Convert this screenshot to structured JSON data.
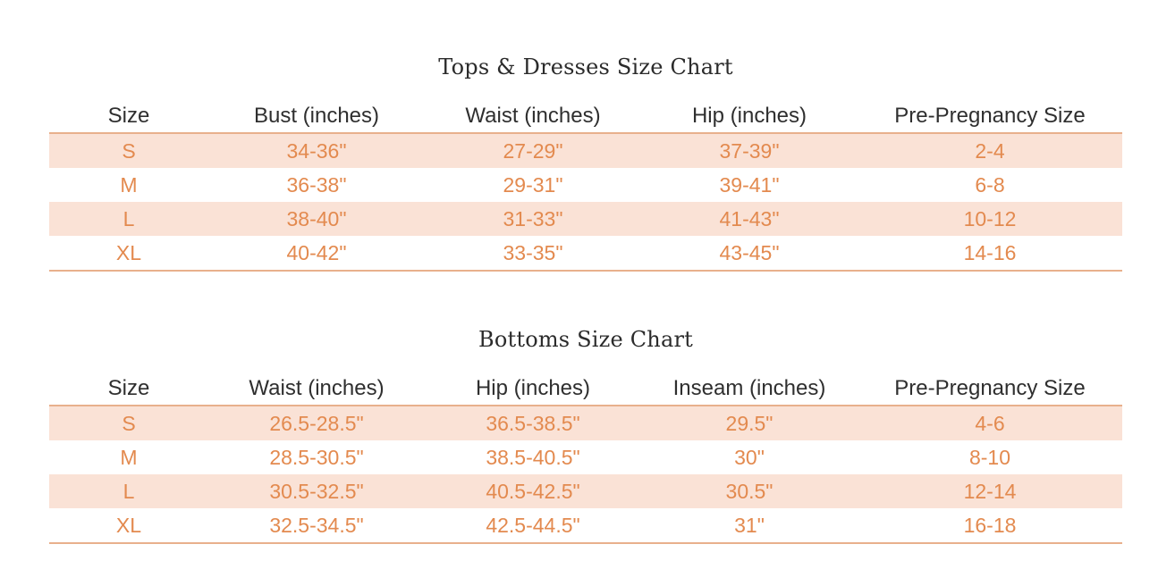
{
  "tops": {
    "title": "Tops & Dresses Size Chart",
    "headers": [
      "Size",
      "Bust (inches)",
      "Waist (inches)",
      "Hip (inches)",
      "Pre-Pregnancy Size"
    ],
    "rows": [
      [
        "S",
        "34-36\"",
        "27-29\"",
        "37-39\"",
        "2-4"
      ],
      [
        "M",
        "36-38\"",
        "29-31\"",
        "39-41\"",
        "6-8"
      ],
      [
        "L",
        "38-40\"",
        "31-33\"",
        "41-43\"",
        "10-12"
      ],
      [
        "XL",
        "40-42\"",
        "33-35\"",
        "43-45\"",
        "14-16"
      ]
    ]
  },
  "bottoms": {
    "title": "Bottoms Size Chart",
    "headers": [
      "Size",
      "Waist (inches)",
      "Hip (inches)",
      "Inseam (inches)",
      "Pre-Pregnancy Size"
    ],
    "rows": [
      [
        "S",
        "26.5-28.5\"",
        "36.5-38.5\"",
        "29.5\"",
        "4-6"
      ],
      [
        "M",
        "28.5-30.5\"",
        "38.5-40.5\"",
        "30\"",
        "8-10"
      ],
      [
        "L",
        "30.5-32.5\"",
        "40.5-42.5\"",
        "30.5\"",
        "12-14"
      ],
      [
        "XL",
        "32.5-34.5\"",
        "42.5-44.5\"",
        "31\"",
        "16-18"
      ]
    ]
  },
  "colors": {
    "accent_text": "#e38a4f",
    "row_shade": "#fae2d6",
    "rule": "#e8b08c",
    "header_text": "#2f2f2f"
  }
}
